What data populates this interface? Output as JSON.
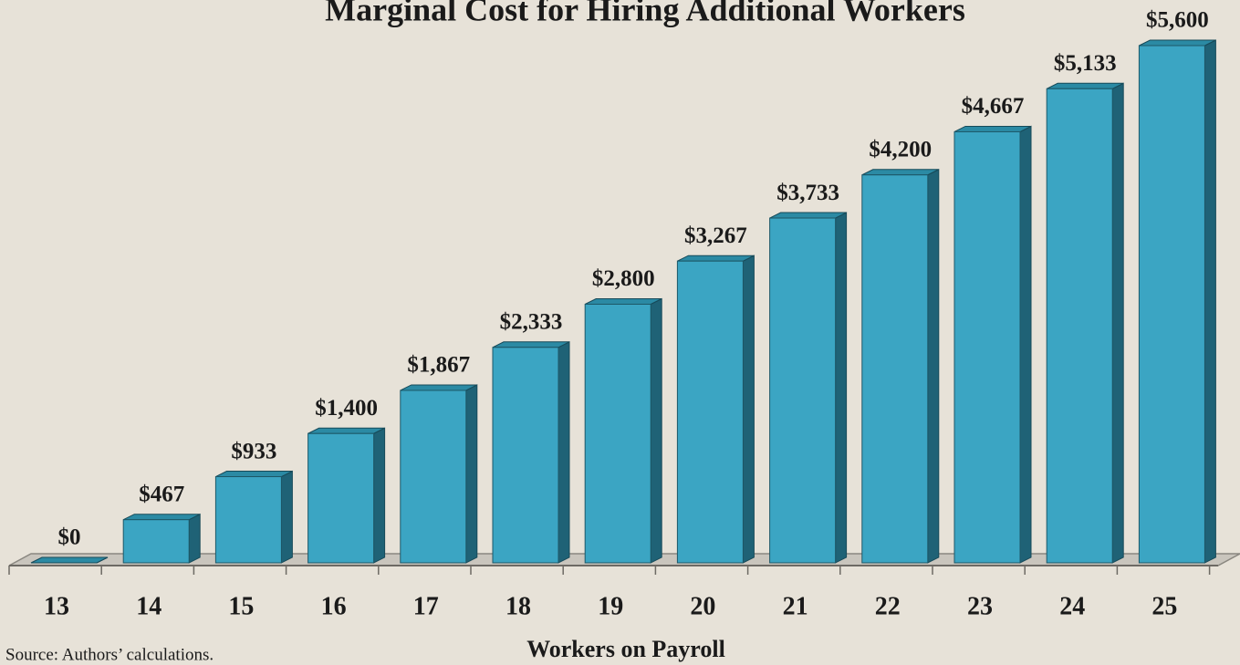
{
  "chart_data": {
    "type": "bar3d",
    "title": "Marginal Cost for Hiring Additional Workers",
    "x_label": "Workers on Payroll",
    "source": "Source: Authors’ calculations.",
    "categories": [
      "13",
      "14",
      "15",
      "16",
      "17",
      "18",
      "19",
      "20",
      "21",
      "22",
      "23",
      "24",
      "25"
    ],
    "values": [
      0,
      467,
      933,
      1400,
      1867,
      2333,
      2800,
      3267,
      3733,
      4200,
      4667,
      5133,
      5600
    ],
    "value_labels": [
      "$0",
      "$467",
      "$933",
      "$1,400",
      "$1,867",
      "$2,333",
      "$2,800",
      "$3,267",
      "$3,733",
      "$4,200",
      "$4,667",
      "$5,133",
      "$5,600"
    ],
    "color": "#3ba5c3"
  }
}
